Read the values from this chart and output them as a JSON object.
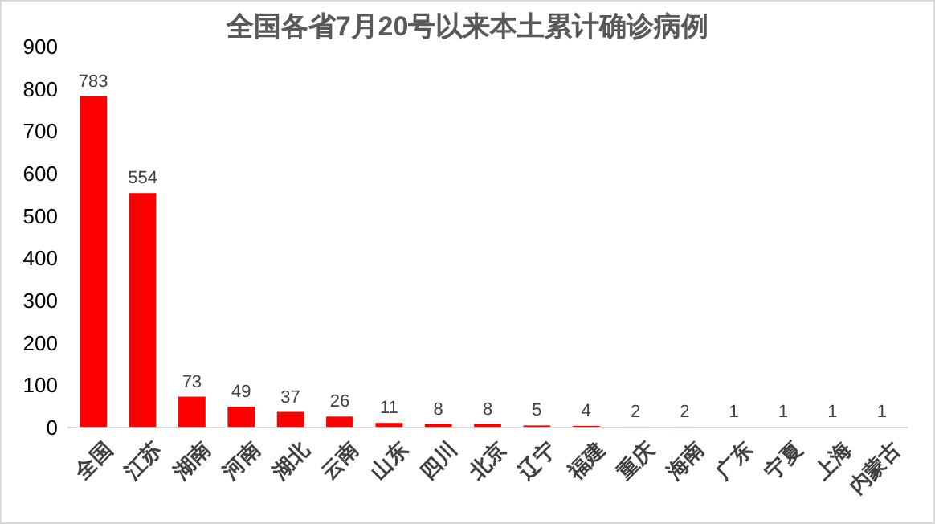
{
  "chart_data": {
    "type": "bar",
    "title": "全国各省7月20号以来本土累计确诊病例",
    "categories": [
      "全国",
      "江苏",
      "湖南",
      "河南",
      "湖北",
      "云南",
      "山东",
      "四川",
      "北京",
      "辽宁",
      "福建",
      "重庆",
      "海南",
      "广东",
      "宁夏",
      "上海",
      "内蒙古"
    ],
    "values": [
      783,
      554,
      73,
      49,
      37,
      26,
      11,
      8,
      8,
      5,
      4,
      2,
      2,
      1,
      1,
      1,
      1
    ],
    "color": "#ff0000",
    "data_labels": true,
    "ylim": [
      0,
      900
    ],
    "yticks": [
      0,
      100,
      200,
      300,
      400,
      500,
      600,
      700,
      800,
      900
    ],
    "grid": false
  }
}
